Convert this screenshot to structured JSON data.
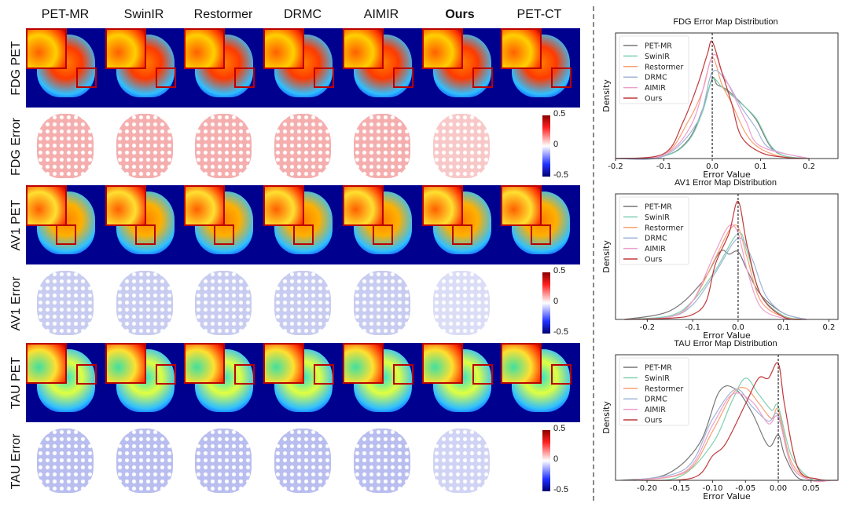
{
  "columns": [
    "PET-MR",
    "SwinIR",
    "Restormer",
    "DRMC",
    "AIMIR",
    "Ours",
    "PET-CT"
  ],
  "bold_column": "Ours",
  "rows": [
    {
      "label": "FDG PET",
      "kind": "pet",
      "tracer": "FDG"
    },
    {
      "label": "FDG Error",
      "kind": "error",
      "tracer": "FDG"
    },
    {
      "label": "AV1 PET",
      "kind": "pet",
      "tracer": "AV1"
    },
    {
      "label": "AV1 Error",
      "kind": "error",
      "tracer": "AV1"
    },
    {
      "label": "TAU PET",
      "kind": "pet",
      "tracer": "TAU"
    },
    {
      "label": "TAU Error",
      "kind": "error",
      "tracer": "TAU"
    }
  ],
  "colorbar": {
    "max": "0.5",
    "mid": "0",
    "min": "-0.5"
  },
  "series_colors": {
    "PET-MR": "#777777",
    "SwinIR": "#7fd0b0",
    "Restormer": "#f9a070",
    "DRMC": "#a0b4d8",
    "AIMIR": "#ee9fce",
    "Ours": "#c0393b"
  },
  "chart_data": [
    {
      "type": "line",
      "title": "FDG Error Map Distribution",
      "xlabel": "Error Value",
      "ylabel": "Density",
      "xlim": [
        -0.2,
        0.26
      ],
      "ylim": [
        0,
        1
      ],
      "xticks": [
        "-0.2",
        "-0.1",
        "0.0",
        "0.1",
        "0.2"
      ],
      "xtick_values": [
        -0.2,
        -0.1,
        0,
        0.1,
        0.2
      ],
      "vline": 0,
      "legend": "top-left",
      "y_ticks_shown": false,
      "series": [
        {
          "name": "PET-MR",
          "points": [
            [
              -0.2,
              0
            ],
            [
              -0.1,
              0.02
            ],
            [
              -0.05,
              0.15
            ],
            [
              -0.02,
              0.4
            ],
            [
              0,
              0.65
            ],
            [
              0.01,
              0.6
            ],
            [
              0.03,
              0.56
            ],
            [
              0.06,
              0.45
            ],
            [
              0.09,
              0.32
            ],
            [
              0.12,
              0.1
            ],
            [
              0.15,
              0.02
            ],
            [
              0.2,
              0
            ]
          ]
        },
        {
          "name": "SwinIR",
          "points": [
            [
              -0.2,
              0
            ],
            [
              -0.1,
              0.02
            ],
            [
              -0.05,
              0.14
            ],
            [
              -0.02,
              0.38
            ],
            [
              0,
              0.64
            ],
            [
              0.02,
              0.58
            ],
            [
              0.05,
              0.48
            ],
            [
              0.09,
              0.33
            ],
            [
              0.12,
              0.11
            ],
            [
              0.15,
              0.02
            ],
            [
              0.2,
              0
            ]
          ]
        },
        {
          "name": "Restormer",
          "points": [
            [
              -0.2,
              0
            ],
            [
              -0.1,
              0.03
            ],
            [
              -0.05,
              0.3
            ],
            [
              -0.02,
              0.55
            ],
            [
              0,
              0.82
            ],
            [
              0.02,
              0.6
            ],
            [
              0.04,
              0.45
            ],
            [
              0.07,
              0.2
            ],
            [
              0.1,
              0.08
            ],
            [
              0.15,
              0.01
            ],
            [
              0.2,
              0
            ]
          ]
        },
        {
          "name": "DRMC",
          "points": [
            [
              -0.2,
              0
            ],
            [
              -0.1,
              0.02
            ],
            [
              -0.03,
              0.3
            ],
            [
              0,
              0.7
            ],
            [
              0.03,
              0.62
            ],
            [
              0.06,
              0.42
            ],
            [
              0.09,
              0.25
            ],
            [
              0.12,
              0.08
            ],
            [
              0.2,
              0
            ]
          ]
        },
        {
          "name": "AIMIR",
          "points": [
            [
              -0.2,
              0
            ],
            [
              -0.1,
              0.03
            ],
            [
              -0.04,
              0.3
            ],
            [
              0,
              0.83
            ],
            [
              0.02,
              0.7
            ],
            [
              0.04,
              0.55
            ],
            [
              0.07,
              0.3
            ],
            [
              0.1,
              0.1
            ],
            [
              0.2,
              0
            ]
          ]
        },
        {
          "name": "Ours",
          "points": [
            [
              -0.2,
              0
            ],
            [
              -0.1,
              0.04
            ],
            [
              -0.06,
              0.3
            ],
            [
              -0.03,
              0.6
            ],
            [
              -0.01,
              0.85
            ],
            [
              0,
              0.95
            ],
            [
              0.02,
              0.7
            ],
            [
              0.04,
              0.45
            ],
            [
              0.06,
              0.18
            ],
            [
              0.1,
              0.05
            ],
            [
              0.15,
              0.01
            ],
            [
              0.2,
              0
            ]
          ]
        }
      ]
    },
    {
      "type": "line",
      "title": "AV1 Error Map Distribution",
      "xlabel": "Error Value",
      "ylabel": "Density",
      "xlim": [
        -0.27,
        0.22
      ],
      "ylim": [
        0,
        1
      ],
      "xticks": [
        "-0.2",
        "-0.1",
        "0.0",
        "0.1",
        "0.2"
      ],
      "xtick_values": [
        -0.2,
        -0.1,
        0,
        0.1,
        0.2
      ],
      "vline": 0,
      "legend": "top-left",
      "y_ticks_shown": false,
      "series": [
        {
          "name": "PET-MR",
          "points": [
            [
              -0.25,
              0
            ],
            [
              -0.15,
              0.07
            ],
            [
              -0.08,
              0.3
            ],
            [
              -0.04,
              0.55
            ],
            [
              -0.02,
              0.53
            ],
            [
              0,
              0.55
            ],
            [
              0.02,
              0.4
            ],
            [
              0.05,
              0.2
            ],
            [
              0.1,
              0.05
            ],
            [
              0.15,
              0
            ]
          ]
        },
        {
          "name": "SwinIR",
          "points": [
            [
              -0.25,
              0
            ],
            [
              -0.15,
              0.03
            ],
            [
              -0.1,
              0.15
            ],
            [
              -0.05,
              0.4
            ],
            [
              0,
              0.7
            ],
            [
              0.02,
              0.55
            ],
            [
              0.05,
              0.2
            ],
            [
              0.1,
              0.03
            ],
            [
              0.15,
              0
            ]
          ]
        },
        {
          "name": "Restormer",
          "points": [
            [
              -0.25,
              0
            ],
            [
              -0.15,
              0.02
            ],
            [
              -0.1,
              0.15
            ],
            [
              -0.05,
              0.5
            ],
            [
              -0.02,
              0.72
            ],
            [
              0,
              0.75
            ],
            [
              0.02,
              0.5
            ],
            [
              0.05,
              0.15
            ],
            [
              0.1,
              0.02
            ],
            [
              0.15,
              0
            ]
          ]
        },
        {
          "name": "DRMC",
          "points": [
            [
              -0.25,
              0
            ],
            [
              -0.15,
              0.02
            ],
            [
              -0.1,
              0.12
            ],
            [
              -0.05,
              0.38
            ],
            [
              0,
              0.66
            ],
            [
              0.03,
              0.5
            ],
            [
              0.06,
              0.2
            ],
            [
              0.1,
              0.05
            ],
            [
              0.15,
              0
            ]
          ]
        },
        {
          "name": "AIMIR",
          "points": [
            [
              -0.25,
              0
            ],
            [
              -0.15,
              0.02
            ],
            [
              -0.1,
              0.15
            ],
            [
              -0.05,
              0.55
            ],
            [
              -0.02,
              0.76
            ],
            [
              0,
              0.7
            ],
            [
              0.02,
              0.4
            ],
            [
              0.05,
              0.1
            ],
            [
              0.1,
              0.01
            ],
            [
              0.15,
              0
            ]
          ]
        },
        {
          "name": "Ours",
          "points": [
            [
              -0.25,
              0
            ],
            [
              -0.15,
              0.01
            ],
            [
              -0.1,
              0.04
            ],
            [
              -0.07,
              0.15
            ],
            [
              -0.05,
              0.45
            ],
            [
              -0.02,
              0.7
            ],
            [
              0,
              0.96
            ],
            [
              0.02,
              0.6
            ],
            [
              0.05,
              0.2
            ],
            [
              0.1,
              0.02
            ],
            [
              0.15,
              0
            ]
          ]
        }
      ]
    },
    {
      "type": "line",
      "title": "TAU Error Map Distribution",
      "xlabel": "Error Value",
      "ylabel": "Density",
      "xlim": [
        -0.248,
        0.091
      ],
      "ylim": [
        0,
        1
      ],
      "xticks": [
        "-0.20",
        "-0.15",
        "-0.10",
        "-0.05",
        "0.00",
        "0.05"
      ],
      "xtick_values": [
        -0.2,
        -0.15,
        -0.1,
        -0.05,
        0,
        0.05
      ],
      "vline": 0,
      "legend": "top-left",
      "y_ticks_shown": false,
      "series": [
        {
          "name": "PET-MR",
          "points": [
            [
              -0.24,
              0
            ],
            [
              -0.17,
              0.05
            ],
            [
              -0.12,
              0.3
            ],
            [
              -0.09,
              0.72
            ],
            [
              -0.065,
              0.74
            ],
            [
              -0.04,
              0.55
            ],
            [
              -0.015,
              0.28
            ],
            [
              0,
              0.37
            ],
            [
              0.01,
              0.2
            ],
            [
              0.03,
              0.02
            ],
            [
              0.06,
              0
            ]
          ]
        },
        {
          "name": "SwinIR",
          "points": [
            [
              -0.22,
              0
            ],
            [
              -0.15,
              0.03
            ],
            [
              -0.1,
              0.3
            ],
            [
              -0.07,
              0.65
            ],
            [
              -0.05,
              0.83
            ],
            [
              -0.03,
              0.7
            ],
            [
              -0.01,
              0.57
            ],
            [
              0,
              0.6
            ],
            [
              0.02,
              0.2
            ],
            [
              0.05,
              0.01
            ],
            [
              0.08,
              0
            ]
          ]
        },
        {
          "name": "Restormer",
          "points": [
            [
              -0.22,
              0
            ],
            [
              -0.14,
              0.07
            ],
            [
              -0.1,
              0.4
            ],
            [
              -0.07,
              0.7
            ],
            [
              -0.05,
              0.75
            ],
            [
              -0.03,
              0.63
            ],
            [
              -0.01,
              0.5
            ],
            [
              0,
              0.57
            ],
            [
              0.02,
              0.15
            ],
            [
              0.05,
              0
            ],
            [
              0.08,
              0
            ]
          ]
        },
        {
          "name": "DRMC",
          "points": [
            [
              -0.22,
              0
            ],
            [
              -0.14,
              0.1
            ],
            [
              -0.1,
              0.5
            ],
            [
              -0.065,
              0.74
            ],
            [
              -0.04,
              0.6
            ],
            [
              -0.015,
              0.48
            ],
            [
              0,
              0.53
            ],
            [
              0.02,
              0.12
            ],
            [
              0.05,
              0
            ],
            [
              0.08,
              0
            ]
          ]
        },
        {
          "name": "AIMIR",
          "points": [
            [
              -0.22,
              0
            ],
            [
              -0.14,
              0.08
            ],
            [
              -0.1,
              0.45
            ],
            [
              -0.07,
              0.7
            ],
            [
              -0.04,
              0.64
            ],
            [
              -0.015,
              0.46
            ],
            [
              0,
              0.51
            ],
            [
              0.02,
              0.12
            ],
            [
              0.05,
              0
            ],
            [
              0.08,
              0
            ]
          ]
        },
        {
          "name": "Ours",
          "points": [
            [
              -0.22,
              0
            ],
            [
              -0.13,
              0.02
            ],
            [
              -0.1,
              0.2
            ],
            [
              -0.08,
              0.3
            ],
            [
              -0.05,
              0.62
            ],
            [
              -0.03,
              0.83
            ],
            [
              -0.015,
              0.83
            ],
            [
              0,
              0.95
            ],
            [
              0.01,
              0.6
            ],
            [
              0.03,
              0.1
            ],
            [
              0.06,
              0.01
            ],
            [
              0.09,
              0
            ]
          ]
        }
      ]
    }
  ]
}
